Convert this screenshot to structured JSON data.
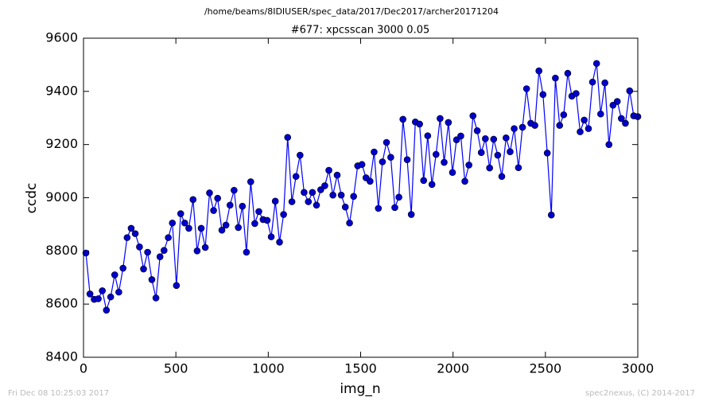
{
  "chart_data": {
    "type": "line",
    "suptitle": "/home/beams/8IDIUSER/spec_data/2017/Dec2017/archer20171204",
    "title": "#677: xpcsscan 3000 0.05",
    "xlabel": "img_n",
    "ylabel": "ccdc",
    "footer_left": "Fri Dec 08 10:25:03 2017",
    "footer_right": "spec2nexus, (C) 2014-2017",
    "xlim": [
      0,
      3000
    ],
    "xticks": [
      0,
      500,
      1000,
      1500,
      2000,
      2500,
      3000
    ],
    "ylim": [
      8400,
      9600
    ],
    "yticks": [
      8400,
      8600,
      8800,
      9000,
      9200,
      9400,
      9600
    ],
    "grid": false,
    "x": [
      13,
      35,
      58,
      80,
      102,
      124,
      147,
      169,
      191,
      214,
      236,
      258,
      280,
      303,
      325,
      347,
      370,
      392,
      414,
      436,
      459,
      481,
      503,
      526,
      548,
      570,
      593,
      615,
      637,
      659,
      682,
      704,
      726,
      749,
      771,
      793,
      815,
      838,
      860,
      882,
      905,
      927,
      949,
      972,
      994,
      1016,
      1038,
      1061,
      1083,
      1105,
      1128,
      1150,
      1172,
      1194,
      1217,
      1239,
      1261,
      1284,
      1306,
      1328,
      1350,
      1373,
      1395,
      1417,
      1440,
      1462,
      1484,
      1507,
      1529,
      1551,
      1573,
      1596,
      1618,
      1640,
      1663,
      1685,
      1707,
      1729,
      1752,
      1774,
      1796,
      1819,
      1841,
      1863,
      1886,
      1908,
      1930,
      1952,
      1975,
      1997,
      2019,
      2042,
      2064,
      2086,
      2108,
      2131,
      2153,
      2175,
      2198,
      2220,
      2242,
      2264,
      2287,
      2309,
      2331,
      2354,
      2376,
      2398,
      2421,
      2443,
      2465,
      2487,
      2510,
      2532,
      2554,
      2577,
      2599,
      2621,
      2643,
      2666,
      2688,
      2710,
      2733,
      2755,
      2777,
      2799,
      2822,
      2844,
      2866,
      2889,
      2911,
      2933,
      2956,
      2978,
      3000
    ],
    "series": [
      {
        "name": "ccdc",
        "color": "#0000ff",
        "marker_color": "#0000cc",
        "values": [
          8792,
          8638,
          8618,
          8620,
          8650,
          8577,
          8627,
          8710,
          8645,
          8735,
          8850,
          8885,
          8865,
          8815,
          8732,
          8795,
          8692,
          8623,
          8778,
          8802,
          8850,
          8905,
          8670,
          8940,
          8905,
          8885,
          8993,
          8800,
          8885,
          8813,
          9018,
          8952,
          8998,
          8878,
          8897,
          8972,
          9028,
          8888,
          8968,
          8795,
          9060,
          8903,
          8948,
          8918,
          8915,
          8853,
          8987,
          8833,
          8937,
          9227,
          8985,
          9080,
          9160,
          9020,
          8985,
          9020,
          8972,
          9030,
          9045,
          9103,
          9010,
          9085,
          9010,
          8965,
          8905,
          9005,
          9120,
          9125,
          9075,
          9062,
          9172,
          8960,
          9135,
          9208,
          9152,
          8963,
          9002,
          9295,
          9143,
          8937,
          9285,
          9277,
          9065,
          9233,
          9050,
          9163,
          9298,
          9133,
          9283,
          9095,
          9218,
          9232,
          9062,
          9123,
          9308,
          9252,
          9170,
          9222,
          9112,
          9220,
          9160,
          9080,
          9225,
          9173,
          9260,
          9113,
          9265,
          9410,
          9280,
          9272,
          9477,
          9388,
          9168,
          8935,
          9450,
          9272,
          9312,
          9468,
          9382,
          9392,
          9248,
          9292,
          9260,
          9435,
          9505,
          9315,
          9432,
          9200,
          9348,
          9362,
          9298,
          9280,
          9402,
          9308,
          9305
        ]
      }
    ]
  }
}
